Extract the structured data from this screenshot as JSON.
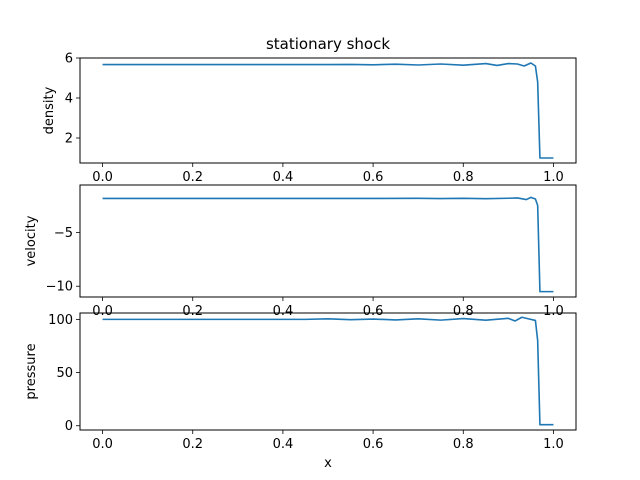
{
  "figure": {
    "title": "stationary shock",
    "xlabel": "x"
  },
  "colors": {
    "line": "#1f77b4",
    "axes": "#000000",
    "background": "#ffffff"
  },
  "chart_data": [
    {
      "type": "line",
      "ylabel": "density",
      "xlim": [
        -0.05,
        1.05
      ],
      "ylim": [
        0.75,
        6.0
      ],
      "xticks": [
        0.0,
        0.2,
        0.4,
        0.6,
        0.8,
        1.0
      ],
      "xtick_labels": [
        "0.0",
        "0.2",
        "0.4",
        "0.6",
        "0.8",
        "1.0"
      ],
      "yticks": [
        2,
        4,
        6
      ],
      "ytick_labels": [
        "2",
        "4",
        "6"
      ],
      "x": [
        0.0,
        0.1,
        0.2,
        0.3,
        0.4,
        0.5,
        0.55,
        0.6,
        0.65,
        0.7,
        0.75,
        0.8,
        0.85,
        0.875,
        0.9,
        0.92,
        0.935,
        0.95,
        0.96,
        0.965,
        0.97,
        0.975,
        0.98,
        1.0
      ],
      "y": [
        5.67,
        5.67,
        5.67,
        5.67,
        5.67,
        5.67,
        5.68,
        5.66,
        5.69,
        5.65,
        5.7,
        5.64,
        5.72,
        5.63,
        5.72,
        5.7,
        5.6,
        5.75,
        5.6,
        4.8,
        1.0,
        1.0,
        1.0,
        1.0
      ]
    },
    {
      "type": "line",
      "ylabel": "velocity",
      "xlim": [
        -0.05,
        1.05
      ],
      "ylim": [
        -11.0,
        -0.6
      ],
      "xticks": [
        0.0,
        0.2,
        0.4,
        0.6,
        0.8,
        1.0
      ],
      "xtick_labels": [
        "0.0",
        "0.2",
        "0.4",
        "0.6",
        "0.8",
        "1.0"
      ],
      "yticks": [
        -5,
        -10
      ],
      "ytick_labels": [
        "−5",
        "−10"
      ],
      "x": [
        0.0,
        0.1,
        0.2,
        0.3,
        0.4,
        0.5,
        0.6,
        0.7,
        0.75,
        0.8,
        0.85,
        0.9,
        0.92,
        0.94,
        0.95,
        0.96,
        0.965,
        0.97,
        0.975,
        1.0
      ],
      "y": [
        -1.85,
        -1.85,
        -1.85,
        -1.85,
        -1.85,
        -1.85,
        -1.85,
        -1.84,
        -1.86,
        -1.84,
        -1.87,
        -1.83,
        -1.8,
        -1.95,
        -1.75,
        -1.9,
        -2.5,
        -10.5,
        -10.5,
        -10.5
      ]
    },
    {
      "type": "line",
      "ylabel": "pressure",
      "xlim": [
        -0.05,
        1.05
      ],
      "ylim": [
        -4,
        106
      ],
      "xticks": [
        0.0,
        0.2,
        0.4,
        0.6,
        0.8,
        1.0
      ],
      "xtick_labels": [
        "0.0",
        "0.2",
        "0.4",
        "0.6",
        "0.8",
        "1.0"
      ],
      "yticks": [
        0,
        50,
        100
      ],
      "ytick_labels": [
        "0",
        "50",
        "100"
      ],
      "x": [
        0.0,
        0.1,
        0.2,
        0.3,
        0.4,
        0.45,
        0.5,
        0.55,
        0.6,
        0.65,
        0.7,
        0.75,
        0.8,
        0.85,
        0.9,
        0.915,
        0.93,
        0.945,
        0.96,
        0.965,
        0.97,
        0.975,
        1.0
      ],
      "y": [
        100,
        100,
        100,
        100,
        100,
        100,
        100.5,
        99.7,
        100.3,
        99.5,
        100.5,
        99.3,
        100.8,
        99.2,
        101,
        98.5,
        102,
        100.5,
        99,
        80,
        1,
        1,
        1
      ]
    }
  ]
}
